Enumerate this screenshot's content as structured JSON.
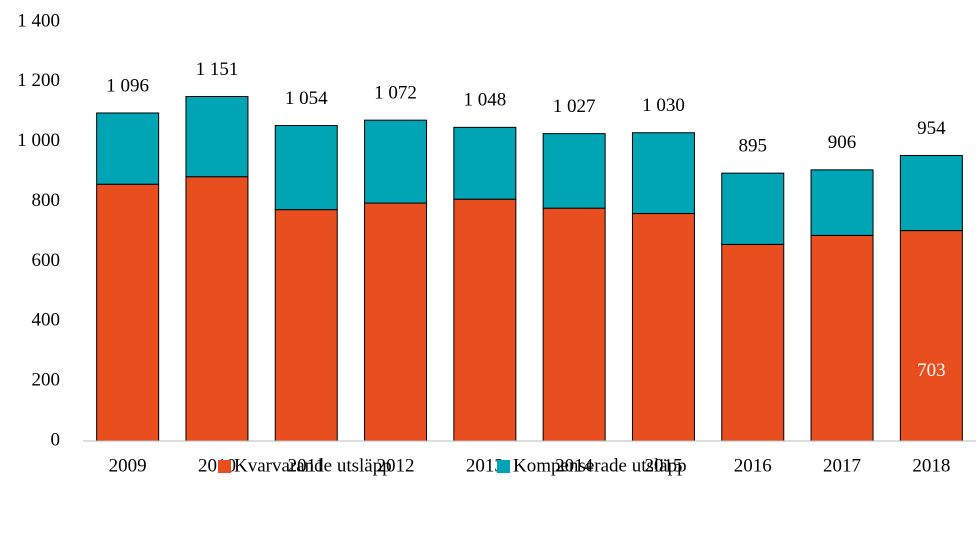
{
  "chart_data": {
    "type": "stacked_bar",
    "categories": [
      "2009",
      "2010",
      "2011",
      "2012",
      "2013",
      "2014",
      "2015",
      "2016",
      "2017",
      "2018"
    ],
    "series": [
      {
        "name": "Kvarvarande utsläpp",
        "color": "#e84e1e",
        "values": [
          858,
          883,
          773,
          795,
          808,
          778,
          760,
          657,
          687,
          703
        ],
        "value_labels": [
          null,
          null,
          null,
          null,
          null,
          null,
          null,
          null,
          null,
          "703"
        ]
      },
      {
        "name": "Kompenserade utsläpp",
        "color": "#00a5b5",
        "values": [
          238,
          268,
          281,
          277,
          240,
          249,
          270,
          238,
          219,
          251
        ]
      }
    ],
    "totals": [
      1096,
      1151,
      1054,
      1072,
      1048,
      1027,
      1030,
      895,
      906,
      954
    ],
    "total_labels": [
      "1 096",
      "1 151",
      "1 054",
      "1 072",
      "1 048",
      "1 027",
      "1 030",
      "895",
      "906",
      "954"
    ],
    "ylim": [
      0,
      1400
    ],
    "yticks": [
      0,
      200,
      400,
      600,
      800,
      {
        "value": 1000,
        "label": "1 000"
      },
      {
        "value": 1200,
        "label": "1 200"
      },
      {
        "value": 1400,
        "label": "1 400"
      }
    ],
    "grid": false,
    "legend": "bottom"
  }
}
